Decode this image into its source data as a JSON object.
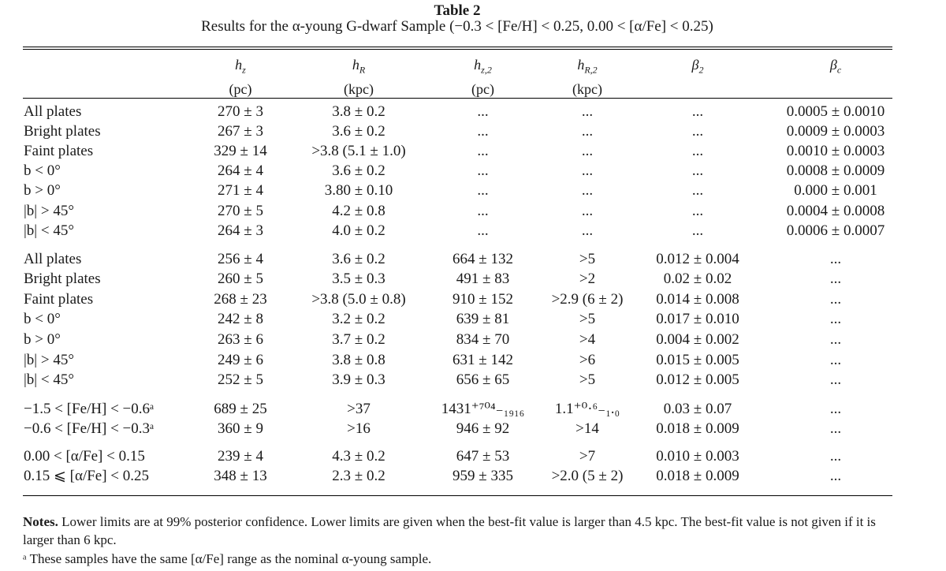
{
  "table": {
    "title": "Table 2",
    "caption": "Results for the α-young G-dwarf Sample (−0.3 < [Fe/H] < 0.25, 0.00 < [α/Fe] < 0.25)",
    "columns": [
      {
        "symbol": "h",
        "sub": "z",
        "unit": "(pc)"
      },
      {
        "symbol": "h",
        "sub": "R",
        "unit": "(kpc)"
      },
      {
        "symbol": "h",
        "sub": "z,2",
        "unit": "(pc)"
      },
      {
        "symbol": "h",
        "sub": "R,2",
        "unit": "(kpc)"
      },
      {
        "symbol": "β",
        "sub": "2",
        "unit": ""
      },
      {
        "symbol": "β",
        "sub": "c",
        "unit": ""
      }
    ],
    "rows": [
      {
        "label": "All plates",
        "hz": "270 ± 3",
        "hR": "3.8 ± 0.2",
        "hz2": "...",
        "hR2": "...",
        "b2": "...",
        "bc": "0.0005 ± 0.0010"
      },
      {
        "label": "Bright plates",
        "hz": "267 ± 3",
        "hR": "3.6 ± 0.2",
        "hz2": "...",
        "hR2": "...",
        "b2": "...",
        "bc": "0.0009 ± 0.0003"
      },
      {
        "label": "Faint plates",
        "hz": "329 ± 14",
        "hR": ">3.8 (5.1 ± 1.0)",
        "hz2": "...",
        "hR2": "...",
        "b2": "...",
        "bc": "0.0010 ± 0.0003"
      },
      {
        "label": "b < 0°",
        "hz": "264 ± 4",
        "hR": "3.6 ± 0.2",
        "hz2": "...",
        "hR2": "...",
        "b2": "...",
        "bc": "0.0008 ± 0.0009"
      },
      {
        "label": "b > 0°",
        "hz": "271 ± 4",
        "hR": "3.80 ± 0.10",
        "hz2": "...",
        "hR2": "...",
        "b2": "...",
        "bc": "0.000 ± 0.001"
      },
      {
        "label": "|b| > 45°",
        "hz": "270 ± 5",
        "hR": "4.2 ± 0.8",
        "hz2": "...",
        "hR2": "...",
        "b2": "...",
        "bc": "0.0004 ± 0.0008"
      },
      {
        "label": "|b| < 45°",
        "hz": "264 ± 3",
        "hR": "4.0 ± 0.2",
        "hz2": "...",
        "hR2": "...",
        "b2": "...",
        "bc": "0.0006 ± 0.0007"
      },
      {
        "label": "All plates",
        "hz": "256 ± 4",
        "hR": "3.6 ± 0.2",
        "hz2": "664 ± 132",
        "hR2": ">5",
        "b2": "0.012 ± 0.004",
        "bc": "..."
      },
      {
        "label": "Bright plates",
        "hz": "260 ± 5",
        "hR": "3.5 ± 0.3",
        "hz2": "491 ± 83",
        "hR2": ">2",
        "b2": "0.02 ± 0.02",
        "bc": "..."
      },
      {
        "label": "Faint plates",
        "hz": "268 ± 23",
        "hR": ">3.8 (5.0 ± 0.8)",
        "hz2": "910 ± 152",
        "hR2": ">2.9 (6 ± 2)",
        "b2": "0.014 ± 0.008",
        "bc": "..."
      },
      {
        "label": "b < 0°",
        "hz": "242 ± 8",
        "hR": "3.2 ± 0.2",
        "hz2": "639 ± 81",
        "hR2": ">5",
        "b2": "0.017 ± 0.010",
        "bc": "..."
      },
      {
        "label": "b > 0°",
        "hz": "263 ± 6",
        "hR": "3.7 ± 0.2",
        "hz2": "834 ± 70",
        "hR2": ">4",
        "b2": "0.004 ± 0.002",
        "bc": "..."
      },
      {
        "label": "|b| > 45°",
        "hz": "249 ± 6",
        "hR": "3.8 ± 0.8",
        "hz2": "631 ± 142",
        "hR2": ">6",
        "b2": "0.015 ± 0.005",
        "bc": "..."
      },
      {
        "label": "|b| < 45°",
        "hz": "252 ± 5",
        "hR": "3.9 ± 0.3",
        "hz2": "656 ± 65",
        "hR2": ">5",
        "b2": "0.012 ± 0.005",
        "bc": "..."
      },
      {
        "label": "−1.5 < [Fe/H] < −0.6ᵃ",
        "hz": "689 ± 25",
        "hR": ">37",
        "hz2": "1431⁺⁷⁰⁴₋₁₉₁₆",
        "hR2": "1.1⁺⁰·⁶₋₁.₀",
        "b2": "0.03 ± 0.07",
        "bc": "..."
      },
      {
        "label": "−0.6 < [Fe/H] < −0.3ᵃ",
        "hz": "360 ± 9",
        "hR": ">16",
        "hz2": "946 ± 92",
        "hR2": ">14",
        "b2": "0.018 ± 0.009",
        "bc": "..."
      },
      {
        "label": "0.00 < [α/Fe] < 0.15",
        "hz": "239 ± 4",
        "hR": "4.3 ± 0.2",
        "hz2": "647 ± 53",
        "hR2": ">7",
        "b2": "0.010 ± 0.003",
        "bc": "..."
      },
      {
        "label": "0.15 ⩽ [α/Fe] < 0.25",
        "hz": "348 ± 13",
        "hR": "2.3 ± 0.2",
        "hz2": "959 ± 335",
        "hR2": ">2.0 (5 ± 2)",
        "b2": "0.018 ± 0.009",
        "bc": "..."
      }
    ],
    "notes_label": "Notes.",
    "notes_text": " Lower limits are at 99% posterior confidence. Lower limits are given when the best-fit value is larger than 4.5 kpc. The best-fit value is not given if it is larger than 6 kpc.",
    "footnote": "ᵃ These samples have the same [α/Fe] range as the nominal α-young sample."
  }
}
